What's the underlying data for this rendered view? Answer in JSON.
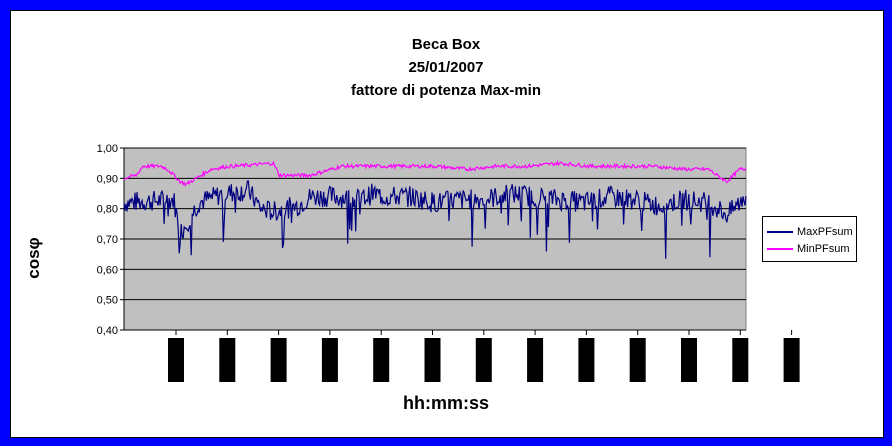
{
  "window": {
    "border_color": "#0000ff"
  },
  "chart_data": {
    "type": "line",
    "title": "Beca Box",
    "subtitle": "25/01/2007",
    "subtitle2": "fattore di potenza Max-min",
    "xlabel": "hh:mm:ss",
    "ylabel": "cosφ",
    "ylim": [
      0.4,
      1.0
    ],
    "yticks": [
      "1,00",
      "0,90",
      "0,80",
      "0,70",
      "0,60",
      "0,50",
      "0,40"
    ],
    "ytick_values": [
      1.0,
      0.9,
      0.8,
      0.7,
      0.6,
      0.5,
      0.4
    ],
    "plot_background": "#c0c0c0",
    "grid": true,
    "legend_position": "right",
    "x_tick_count": 13,
    "series": [
      {
        "name": "MaxPFsum",
        "color": "#000080",
        "x_segments": [
          0,
          0.08,
          0.09,
          0.1,
          0.12,
          0.16,
          0.2,
          0.22,
          0.24,
          0.26,
          0.28,
          0.3,
          0.34,
          0.38,
          0.4,
          0.42,
          0.46,
          0.5,
          0.54,
          0.58,
          0.62,
          0.66,
          0.7,
          0.74,
          0.78,
          0.82,
          0.86,
          0.9,
          0.94,
          0.97,
          1.0
        ],
        "values": [
          0.82,
          0.83,
          0.72,
          0.75,
          0.82,
          0.85,
          0.86,
          0.8,
          0.79,
          0.8,
          0.81,
          0.84,
          0.84,
          0.83,
          0.85,
          0.84,
          0.84,
          0.82,
          0.83,
          0.83,
          0.85,
          0.84,
          0.83,
          0.82,
          0.84,
          0.83,
          0.81,
          0.83,
          0.82,
          0.78,
          0.84
        ]
      },
      {
        "name": "MinPFsum",
        "color": "#ff00ff",
        "x_segments": [
          0,
          0.02,
          0.03,
          0.06,
          0.07,
          0.09,
          0.1,
          0.14,
          0.17,
          0.18,
          0.24,
          0.25,
          0.3,
          0.35,
          0.4,
          0.5,
          0.55,
          0.6,
          0.65,
          0.7,
          0.75,
          0.8,
          0.85,
          0.9,
          0.94,
          0.96,
          0.97,
          0.99,
          1.0
        ],
        "values": [
          0.9,
          0.91,
          0.94,
          0.94,
          0.93,
          0.89,
          0.88,
          0.93,
          0.94,
          0.94,
          0.95,
          0.91,
          0.91,
          0.94,
          0.94,
          0.94,
          0.93,
          0.94,
          0.94,
          0.95,
          0.94,
          0.94,
          0.94,
          0.93,
          0.93,
          0.9,
          0.89,
          0.93,
          0.93
        ]
      }
    ]
  }
}
